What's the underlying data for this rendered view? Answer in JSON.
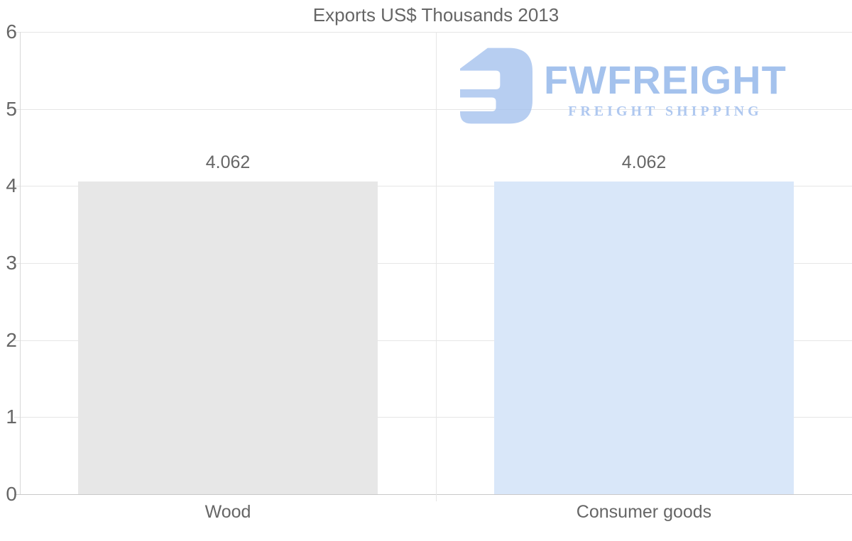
{
  "chart_data": {
    "type": "bar",
    "title": "Exports US$ Thousands 2013",
    "categories": [
      "Wood",
      "Consumer goods"
    ],
    "values": [
      4.062,
      4.062
    ],
    "value_labels": [
      "4.062",
      "4.062"
    ],
    "bar_colors": [
      "#e7e7e7",
      "#d9e7f9"
    ],
    "xlabel": "",
    "ylabel": "",
    "ylim": [
      0,
      6
    ],
    "yticks": [
      0,
      1,
      2,
      3,
      4,
      5,
      6
    ],
    "grid": true,
    "legend": "none"
  },
  "watermark": {
    "brand": "FWFREIGHT",
    "tagline": "FREIGHT SHIPPING",
    "brand_color": "#9dbdec",
    "tagline_color": "#a9c4ef",
    "mark_color": "#a6c3ee"
  },
  "colors": {
    "text": "#666666",
    "gridline": "#e6e6e6",
    "y_axis_line": "#d8d8d8",
    "x_axis_line": "#c9c9c9",
    "background": "#ffffff"
  }
}
